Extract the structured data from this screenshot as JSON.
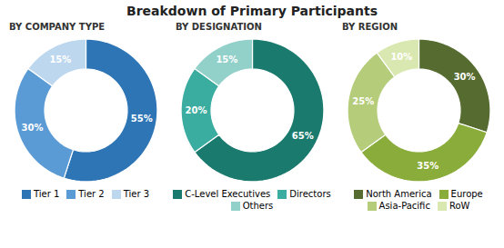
{
  "title": "Breakdown of Primary Participants",
  "chart_data": [
    {
      "type": "pie",
      "title": "BY COMPANY TYPE",
      "categories": [
        "Tier 1",
        "Tier 2",
        "Tier 3"
      ],
      "values": [
        55,
        30,
        15
      ],
      "value_labels": [
        "55%",
        "30%",
        "15%"
      ],
      "colors": [
        "#2e75b6",
        "#5b9bd5",
        "#bdd7ee"
      ],
      "data_labels": true,
      "legend": "bottom"
    },
    {
      "type": "pie",
      "title": "BY DESIGNATION",
      "categories": [
        "C-Level Executives",
        "Directors",
        "Others"
      ],
      "values": [
        65,
        20,
        15
      ],
      "value_labels": [
        "65%",
        "20%",
        "15%"
      ],
      "colors": [
        "#1a7a6e",
        "#3aada0",
        "#92d0ca"
      ],
      "data_labels": true,
      "legend": "bottom"
    },
    {
      "type": "pie",
      "title": "BY REGION",
      "categories": [
        "North America",
        "Europe",
        "Asia-Pacific",
        "RoW"
      ],
      "values": [
        30,
        35,
        25,
        10
      ],
      "value_labels": [
        "30%",
        "35%",
        "25%",
        "10%"
      ],
      "colors": [
        "#556b2f",
        "#8aac3a",
        "#b5cc7a",
        "#d9e8b0"
      ],
      "data_labels": true,
      "legend": "bottom"
    }
  ]
}
